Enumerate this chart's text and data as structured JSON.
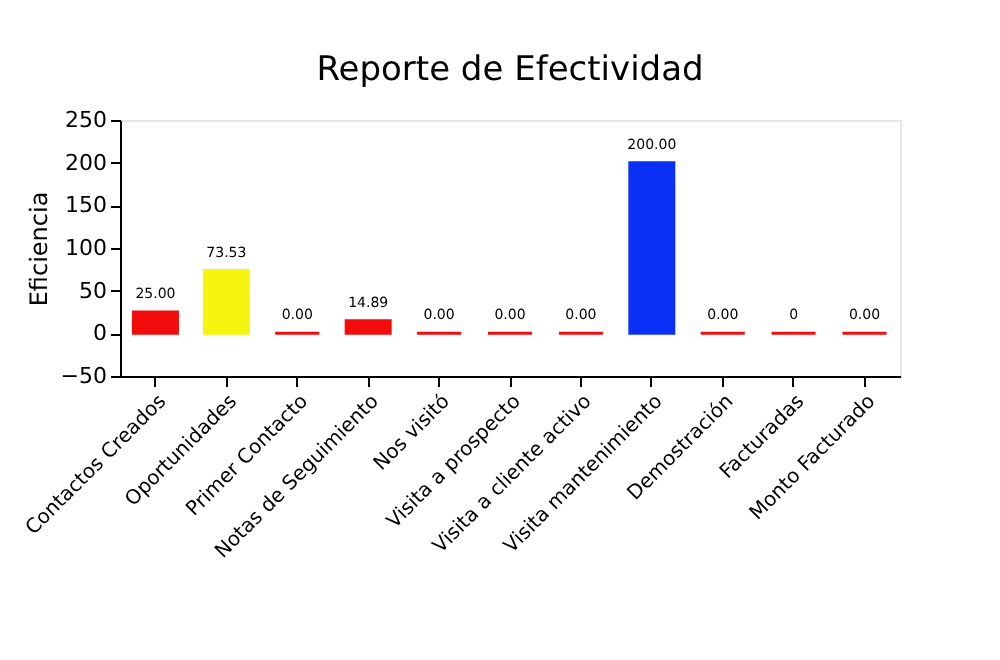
{
  "chart_data": {
    "type": "bar",
    "title": "Reporte de Efectividad",
    "ylabel": "Eficiencia",
    "categories": [
      "Contactos Creados",
      "Oportunidades",
      "Primer Contacto",
      "Notas de Seguimiento",
      "Nos visitó",
      "Visita a prospecto",
      "Visita a cliente activo",
      "Visita mantenimiento",
      "Demostración",
      "Facturadas",
      "Monto Facturado"
    ],
    "values": [
      25,
      73.53,
      0,
      14.89,
      0,
      0,
      0,
      200,
      0,
      0,
      0
    ],
    "value_labels": [
      "25.00",
      "73.53",
      "0.00",
      "14.89",
      "0.00",
      "0.00",
      "0.00",
      "200.00",
      "0.00",
      "0",
      "0.00"
    ],
    "colors": [
      "#f20c0c",
      "#f5f50f",
      "#f20c0c",
      "#f20c0c",
      "#f20c0c",
      "#f20c0c",
      "#f20c0c",
      "#0a2ff5",
      "#f20c0c",
      "#f20c0c",
      "#f20c0c"
    ],
    "ylim": [
      -50,
      250
    ],
    "yticks": [
      -50,
      0,
      50,
      100,
      150,
      200,
      250
    ],
    "grid": false
  }
}
